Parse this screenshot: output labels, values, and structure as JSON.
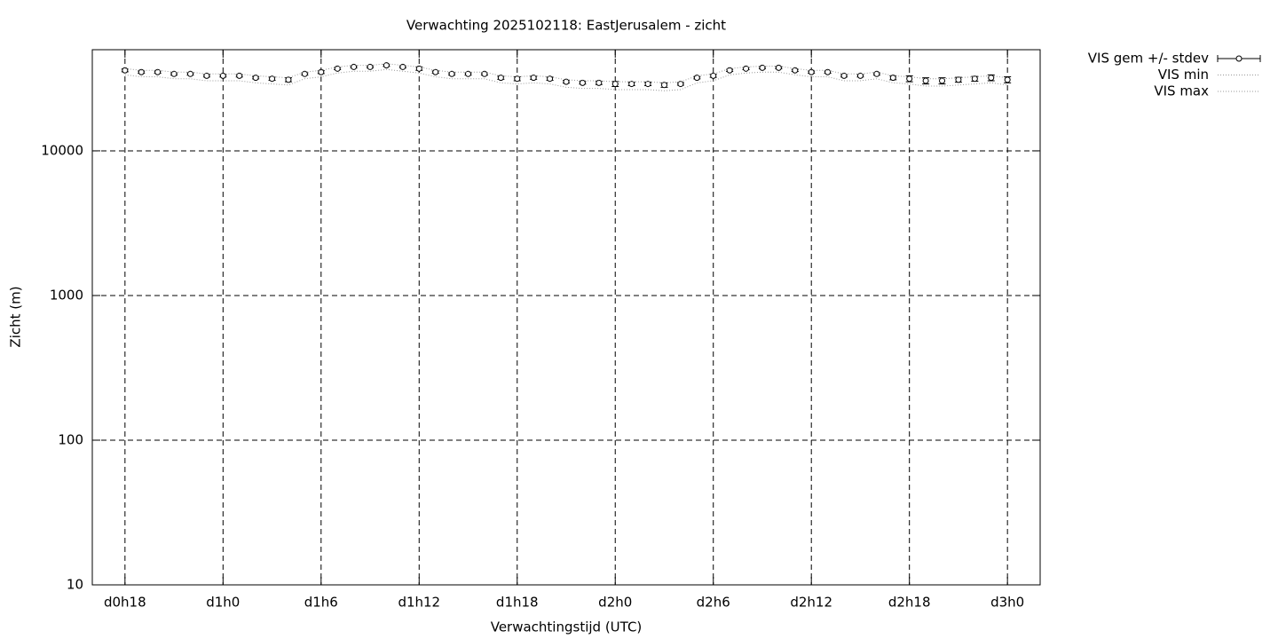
{
  "chart_data": {
    "type": "errorbar",
    "title": "Verwachting 2025102118: EastJerusalem - zicht",
    "x_label": "Verwachtingstijd (UTC)",
    "y_label": "Zicht (m)",
    "ylog": true,
    "grid": true,
    "legend": "outside-right",
    "xlim": [
      16,
      74
    ],
    "xticks": [
      {
        "value": 18,
        "label": "d0h18"
      },
      {
        "value": 24,
        "label": "d1h0"
      },
      {
        "value": 30,
        "label": "d1h6"
      },
      {
        "value": 36,
        "label": "d1h12"
      },
      {
        "value": 42,
        "label": "d1h18"
      },
      {
        "value": 48,
        "label": "d2h0"
      },
      {
        "value": 54,
        "label": "d2h6"
      },
      {
        "value": 60,
        "label": "d2h12"
      },
      {
        "value": 66,
        "label": "d2h18"
      },
      {
        "value": 72,
        "label": "d3h0"
      }
    ],
    "ylim": [
      10,
      50000
    ],
    "yticks": [
      10,
      100,
      1000,
      10000
    ],
    "x": [
      18,
      19,
      20,
      21,
      22,
      23,
      24,
      25,
      26,
      27,
      28,
      29,
      30,
      31,
      32,
      33,
      34,
      35,
      36,
      37,
      38,
      39,
      40,
      41,
      42,
      43,
      44,
      45,
      46,
      47,
      48,
      49,
      50,
      51,
      52,
      53,
      54,
      55,
      56,
      57,
      58,
      59,
      60,
      61,
      62,
      63,
      64,
      65,
      66,
      67,
      68,
      69,
      70,
      71,
      72
    ],
    "series": [
      {
        "name": "VIS gem +/- stdev",
        "color": "#000000",
        "values": [
          36000,
          35000,
          35000,
          34000,
          34000,
          33000,
          33000,
          33000,
          32000,
          31500,
          31000,
          34000,
          35000,
          37000,
          38000,
          38000,
          39000,
          38000,
          37000,
          35000,
          34000,
          34000,
          34000,
          32000,
          31500,
          32000,
          31500,
          30000,
          29500,
          29500,
          29000,
          29000,
          29000,
          28500,
          29000,
          32000,
          33000,
          36000,
          37000,
          37500,
          37500,
          36000,
          35000,
          35000,
          33000,
          33000,
          34000,
          32000,
          31500,
          30500,
          30500,
          31000,
          31500,
          32000,
          31000
        ],
        "errors": [
          800,
          600,
          600,
          600,
          600,
          600,
          600,
          600,
          600,
          800,
          1000,
          600,
          800,
          600,
          600,
          600,
          600,
          600,
          1000,
          600,
          600,
          600,
          600,
          800,
          1000,
          800,
          800,
          600,
          600,
          800,
          1200,
          800,
          800,
          1000,
          600,
          600,
          800,
          600,
          600,
          600,
          600,
          600,
          600,
          600,
          600,
          600,
          600,
          1000,
          1500,
          1500,
          1500,
          1200,
          1200,
          1500,
          1500
        ]
      },
      {
        "name": "VIS min",
        "color": "#999999",
        "values": [
          33500,
          32500,
          32500,
          31500,
          31500,
          30500,
          30500,
          30500,
          29500,
          29000,
          28500,
          31500,
          32500,
          34500,
          35500,
          35500,
          36500,
          35500,
          34500,
          32500,
          31500,
          31500,
          31500,
          29500,
          29000,
          29500,
          29000,
          27500,
          27000,
          27000,
          26500,
          26500,
          26500,
          26000,
          26500,
          29500,
          30500,
          33500,
          34500,
          35000,
          35000,
          33500,
          32500,
          32500,
          30500,
          30500,
          31500,
          29500,
          29000,
          28000,
          28000,
          28500,
          29000,
          29500,
          28500
        ]
      },
      {
        "name": "VIS max",
        "color": "#999999",
        "values": [
          37000,
          36000,
          36000,
          35000,
          35000,
          34000,
          34000,
          34000,
          33000,
          32500,
          32000,
          35000,
          36000,
          38000,
          39000,
          39000,
          40000,
          39000,
          38000,
          36000,
          35000,
          35000,
          35000,
          33000,
          32500,
          33000,
          32500,
          31000,
          30500,
          30500,
          30000,
          30000,
          30000,
          29500,
          30000,
          33000,
          34000,
          37000,
          38000,
          38500,
          38500,
          37000,
          36000,
          36000,
          34000,
          34000,
          35000,
          33000,
          32500,
          31500,
          31500,
          32000,
          32500,
          33000,
          32000
        ]
      }
    ]
  }
}
